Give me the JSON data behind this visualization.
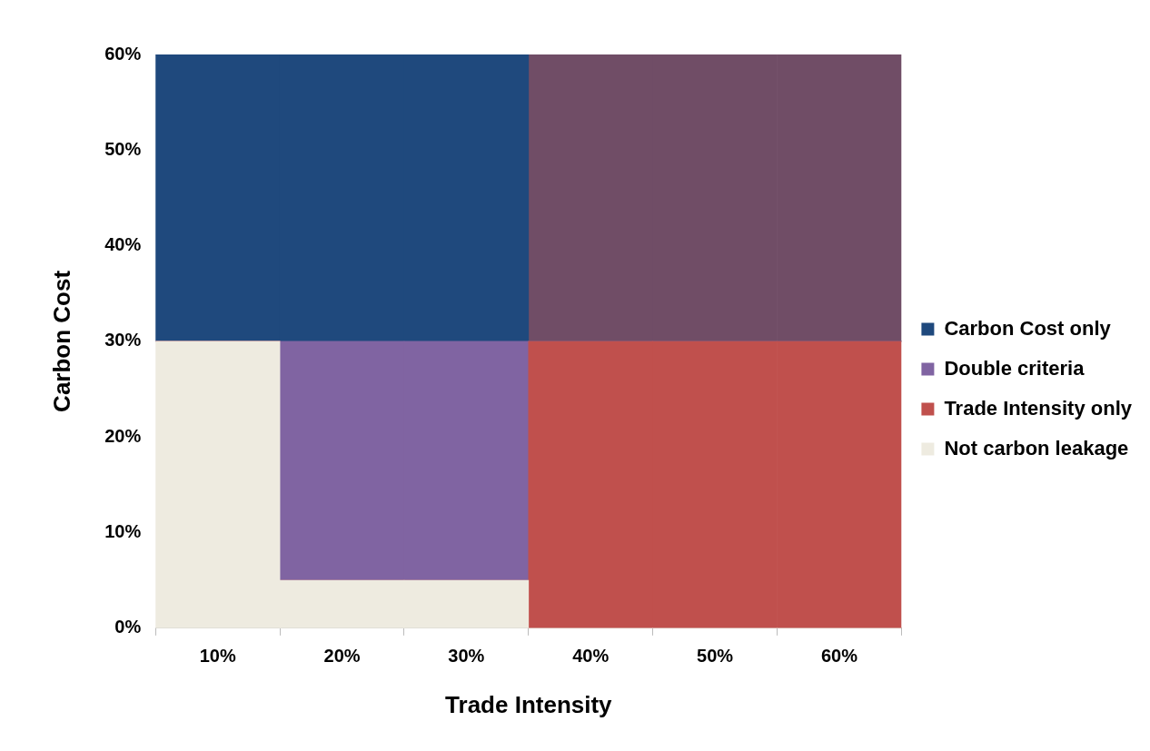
{
  "chart_data": {
    "type": "bar",
    "stacked": true,
    "xlabel": "Trade Intensity",
    "ylabel": "Carbon Cost",
    "categories": [
      "10%",
      "20%",
      "30%",
      "40%",
      "50%",
      "60%"
    ],
    "series": [
      {
        "name": "Not carbon leakage",
        "color": "#eeebe0",
        "values": [
          30,
          5,
          5,
          0,
          0,
          0
        ]
      },
      {
        "name": "Trade Intensity only",
        "color": "#c0504d",
        "values": [
          0,
          0,
          0,
          30,
          30,
          30
        ]
      },
      {
        "name": "Double criteria",
        "color": "#8064a2",
        "values": [
          0,
          25,
          25,
          0,
          0,
          0
        ]
      },
      {
        "name": "Carbon Cost only",
        "color": "#1f497d",
        "values": [
          30,
          30,
          30,
          0,
          0,
          0
        ]
      },
      {
        "color": "#704d66",
        "values": [
          0,
          0,
          0,
          30,
          30,
          30
        ]
      }
    ],
    "ylim": [
      0,
      60
    ],
    "yticks": [
      {
        "value": 0,
        "label": "0%"
      },
      {
        "value": 10,
        "label": "10%"
      },
      {
        "value": 20,
        "label": "20%"
      },
      {
        "value": 30,
        "label": "30%"
      },
      {
        "value": 40,
        "label": "40%"
      },
      {
        "value": 50,
        "label": "50%"
      },
      {
        "value": 60,
        "label": "60%"
      }
    ],
    "grid": false,
    "legend": "right"
  }
}
